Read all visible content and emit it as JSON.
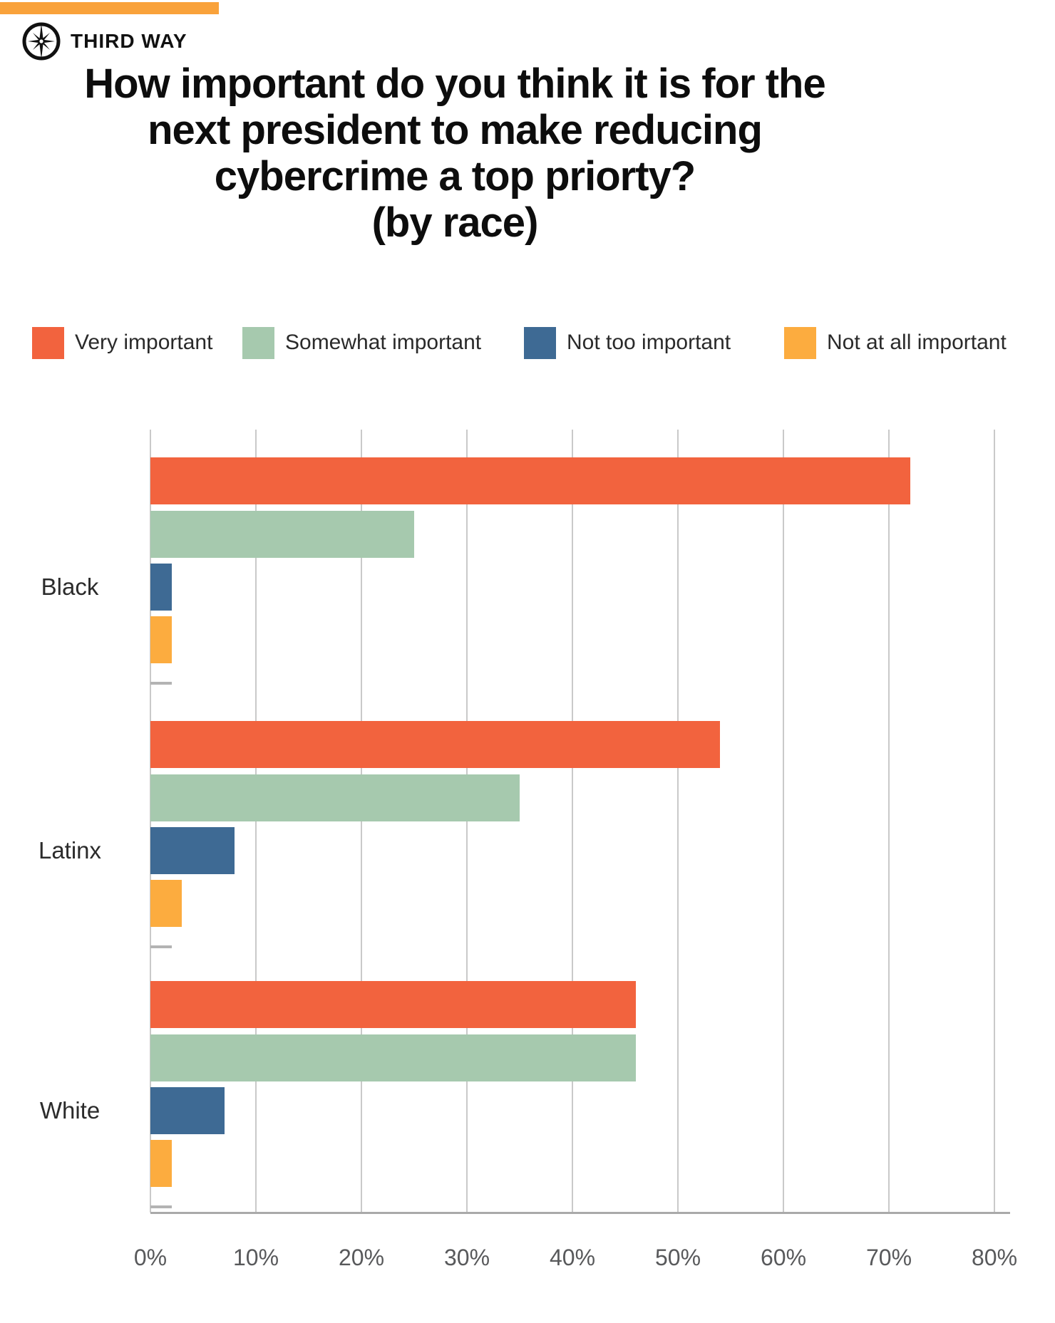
{
  "brand": {
    "name": "THIRD WAY",
    "banner_color": "#F9A23B"
  },
  "title": "How important do you think it is for the\nnext president to make reducing\ncybercrime a top priorty?\n(by race)",
  "legend": {
    "items": [
      {
        "label": "Very important",
        "color": "#F2633E"
      },
      {
        "label": "Somewhat important",
        "color": "#A6C9AE"
      },
      {
        "label": "Not too important",
        "color": "#3E6A94"
      },
      {
        "label": "Not at all important",
        "color": "#FCAC3F"
      }
    ]
  },
  "chart_data": {
    "type": "bar",
    "orientation": "horizontal",
    "title": "How important do you think it is for the next president to make reducing cybercrime a top priorty? (by race)",
    "categories": [
      "Black",
      "Latinx",
      "White"
    ],
    "series": [
      {
        "name": "Very important",
        "color": "#F2633E",
        "values": [
          72,
          54,
          46
        ]
      },
      {
        "name": "Somewhat important",
        "color": "#A6C9AE",
        "values": [
          25,
          35,
          46
        ]
      },
      {
        "name": "Not too important",
        "color": "#3E6A94",
        "values": [
          2,
          8,
          7
        ]
      },
      {
        "name": "Not at all important",
        "color": "#FCAC3F",
        "values": [
          2,
          3,
          2
        ]
      }
    ],
    "extra_unlabeled_series": {
      "color": "#B3B3B3",
      "values": [
        2,
        2,
        2
      ],
      "note": "thin gray bar under each group, not shown in legend"
    },
    "xlabel": "",
    "ylabel": "",
    "x_axis": {
      "min": 0,
      "max": 80,
      "tick_step": 10,
      "tick_labels": [
        "0%",
        "10%",
        "20%",
        "30%",
        "40%",
        "50%",
        "60%",
        "70%",
        "80%"
      ]
    },
    "grid": true,
    "legend_position": "top",
    "gridline_color": "#C9C9C9",
    "axis_line_color": "#A9A9A9"
  }
}
